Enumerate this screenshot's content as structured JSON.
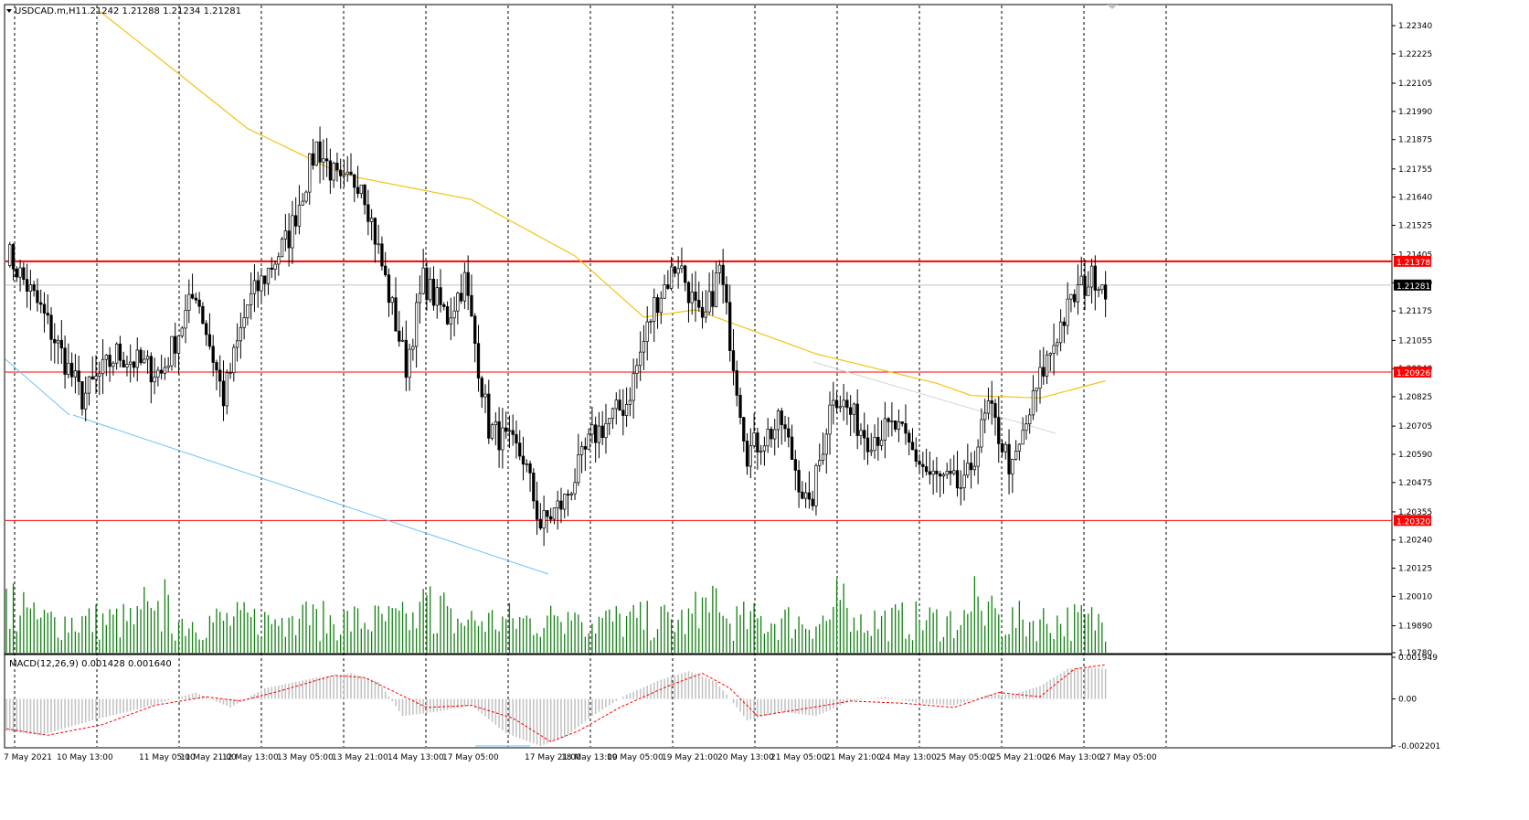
{
  "header": {
    "dropdown_icon": "triangle-down-icon",
    "symbol": "USDCAD.m,H1",
    "ohlc": "1.21242 1.21288 1.21234 1.21281"
  },
  "macd_label": "MACD(12,26,9) 0.001428 0.001640",
  "price_axis": {
    "ticks": [
      "1.22340",
      "1.22225",
      "1.22105",
      "1.21990",
      "1.21875",
      "1.21755",
      "1.21640",
      "1.21525",
      "1.21405",
      "1.21290",
      "1.21175",
      "1.21055",
      "1.20940",
      "1.20825",
      "1.20705",
      "1.20590",
      "1.20475",
      "1.20355",
      "1.20240",
      "1.20125",
      "1.20010",
      "1.19890",
      "1.19780"
    ],
    "min": 1.1978,
    "max": 1.224
  },
  "macd_axis": {
    "ticks": [
      "0.001949",
      "0.00",
      "-0.002201"
    ],
    "min": -0.002201,
    "max": 0.001949
  },
  "levels": [
    {
      "label": "1.21378",
      "value": 1.21378,
      "color": "#ff0000",
      "width": 2
    },
    {
      "label": "1.21281",
      "value": 1.21281,
      "color": "#c0c0c0",
      "current": true
    },
    {
      "label": "1.20926",
      "value": 1.20926,
      "color": "#ff0000",
      "width": 1
    },
    {
      "label": "1.20320",
      "value": 1.2032,
      "color": "#ff0000",
      "width": 1
    }
  ],
  "time_axis": [
    "7 May 2021",
    "10 May 13:00",
    "11 May 05:00",
    "11 May 21:00",
    "12 May 13:00",
    "13 May 05:00",
    "13 May 21:00",
    "14 May 13:00",
    "17 May 05:00",
    "17 May 21:00",
    "18 May 13:00",
    "19 May 05:00",
    "19 May 21:00",
    "20 May 13:00",
    "21 May 05:00",
    "21 May 21:00",
    "24 May 13:00",
    "25 May 05:00",
    "25 May 21:00",
    "26 May 13:00",
    "27 May 05:00"
  ],
  "colors": {
    "ma": "#f2c318",
    "volume": "#118011",
    "level": "#ff0000",
    "trend_blue": "#6ec3ee",
    "trend_gray": "#d3d3d3",
    "macd_hist": "#c0c0c0",
    "macd_signal": "#ff0000",
    "candle": "#000000"
  },
  "chart_data": [
    {
      "type": "line",
      "series_kind": "candlestick",
      "symbol": "USDCAD.m",
      "timeframe": "H1",
      "anchors": [
        {
          "bar": 0,
          "price": 1.2142
        },
        {
          "bar": 10,
          "price": 1.2118
        },
        {
          "bar": 22,
          "price": 1.2082
        },
        {
          "bar": 32,
          "price": 1.21
        },
        {
          "bar": 45,
          "price": 1.2092
        },
        {
          "bar": 55,
          "price": 1.2126
        },
        {
          "bar": 63,
          "price": 1.2082
        },
        {
          "bar": 70,
          "price": 1.212
        },
        {
          "bar": 82,
          "price": 1.2148
        },
        {
          "bar": 90,
          "price": 1.2185
        },
        {
          "bar": 97,
          "price": 1.2168
        },
        {
          "bar": 103,
          "price": 1.2172
        },
        {
          "bar": 110,
          "price": 1.213
        },
        {
          "bar": 116,
          "price": 1.2095
        },
        {
          "bar": 121,
          "price": 1.213
        },
        {
          "bar": 128,
          "price": 1.2115
        },
        {
          "bar": 133,
          "price": 1.213
        },
        {
          "bar": 140,
          "price": 1.207
        },
        {
          "bar": 150,
          "price": 1.2058
        },
        {
          "bar": 155,
          "price": 1.203
        },
        {
          "bar": 162,
          "price": 1.204
        },
        {
          "bar": 170,
          "price": 1.2066
        },
        {
          "bar": 180,
          "price": 1.208
        },
        {
          "bar": 188,
          "price": 1.212
        },
        {
          "bar": 195,
          "price": 1.2138
        },
        {
          "bar": 202,
          "price": 1.211
        },
        {
          "bar": 207,
          "price": 1.2135
        },
        {
          "bar": 215,
          "price": 1.206
        },
        {
          "bar": 225,
          "price": 1.2072
        },
        {
          "bar": 233,
          "price": 1.2035
        },
        {
          "bar": 240,
          "price": 1.2085
        },
        {
          "bar": 250,
          "price": 1.2066
        },
        {
          "bar": 258,
          "price": 1.207
        },
        {
          "bar": 268,
          "price": 1.205
        },
        {
          "bar": 278,
          "price": 1.2045
        },
        {
          "bar": 285,
          "price": 1.2078
        },
        {
          "bar": 292,
          "price": 1.2052
        },
        {
          "bar": 300,
          "price": 1.209
        },
        {
          "bar": 306,
          "price": 1.2112
        },
        {
          "bar": 311,
          "price": 1.2126
        },
        {
          "bar": 316,
          "price": 1.2132
        },
        {
          "bar": 319,
          "price": 1.21281
        }
      ]
    },
    {
      "type": "line",
      "name": "MA",
      "anchors": [
        {
          "bar": 27,
          "price": 1.224
        },
        {
          "bar": 45,
          "price": 1.222
        },
        {
          "bar": 70,
          "price": 1.2192
        },
        {
          "bar": 95,
          "price": 1.2175
        },
        {
          "bar": 102,
          "price": 1.2172
        },
        {
          "bar": 135,
          "price": 1.2163
        },
        {
          "bar": 165,
          "price": 1.214
        },
        {
          "bar": 185,
          "price": 1.2115
        },
        {
          "bar": 200,
          "price": 1.2118
        },
        {
          "bar": 235,
          "price": 1.21
        },
        {
          "bar": 270,
          "price": 1.2088
        },
        {
          "bar": 280,
          "price": 1.2083
        },
        {
          "bar": 300,
          "price": 1.2082
        },
        {
          "bar": 319,
          "price": 1.2089
        }
      ]
    },
    {
      "type": "bar",
      "name": "MACD",
      "anchors": [
        {
          "bar": 0,
          "value": -0.0015
        },
        {
          "bar": 10,
          "value": -0.0017
        },
        {
          "bar": 25,
          "value": -0.001
        },
        {
          "bar": 40,
          "value": -0.0004
        },
        {
          "bar": 55,
          "value": 0.0003
        },
        {
          "bar": 65,
          "value": -0.0004
        },
        {
          "bar": 75,
          "value": 0.0005
        },
        {
          "bar": 90,
          "value": 0.001
        },
        {
          "bar": 100,
          "value": 0.0012
        },
        {
          "bar": 108,
          "value": 0.0008
        },
        {
          "bar": 115,
          "value": -0.0008
        },
        {
          "bar": 125,
          "value": -0.0006
        },
        {
          "bar": 135,
          "value": -0.0003
        },
        {
          "bar": 145,
          "value": -0.0016
        },
        {
          "bar": 155,
          "value": -0.0022
        },
        {
          "bar": 162,
          "value": -0.0018
        },
        {
          "bar": 170,
          "value": -0.0008
        },
        {
          "bar": 180,
          "value": 0.0002
        },
        {
          "bar": 190,
          "value": 0.0009
        },
        {
          "bar": 198,
          "value": 0.0013
        },
        {
          "bar": 206,
          "value": 0.0008
        },
        {
          "bar": 215,
          "value": -0.001
        },
        {
          "bar": 225,
          "value": -0.0006
        },
        {
          "bar": 235,
          "value": -0.0008
        },
        {
          "bar": 245,
          "value": -0.0001
        },
        {
          "bar": 255,
          "value": 0.0001
        },
        {
          "bar": 265,
          "value": -0.0002
        },
        {
          "bar": 275,
          "value": -0.0003
        },
        {
          "bar": 285,
          "value": 0.0002
        },
        {
          "bar": 292,
          "value": 0.0002
        },
        {
          "bar": 300,
          "value": 0.0006
        },
        {
          "bar": 308,
          "value": 0.0014
        },
        {
          "bar": 313,
          "value": 0.0015
        },
        {
          "bar": 319,
          "value": 0.0014
        }
      ],
      "signal_anchors": [
        {
          "bar": 0,
          "value": -0.0014
        },
        {
          "bar": 12,
          "value": -0.0017
        },
        {
          "bar": 28,
          "value": -0.0012
        },
        {
          "bar": 43,
          "value": -0.0003
        },
        {
          "bar": 58,
          "value": 0.0001
        },
        {
          "bar": 68,
          "value": -0.0001
        },
        {
          "bar": 80,
          "value": 0.0004
        },
        {
          "bar": 95,
          "value": 0.0011
        },
        {
          "bar": 104,
          "value": 0.001
        },
        {
          "bar": 113,
          "value": 0.0003
        },
        {
          "bar": 122,
          "value": -0.0004
        },
        {
          "bar": 135,
          "value": -0.0003
        },
        {
          "bar": 147,
          "value": -0.0009
        },
        {
          "bar": 158,
          "value": -0.002
        },
        {
          "bar": 166,
          "value": -0.0015
        },
        {
          "bar": 178,
          "value": -0.0004
        },
        {
          "bar": 192,
          "value": 0.0006
        },
        {
          "bar": 202,
          "value": 0.0012
        },
        {
          "bar": 210,
          "value": 0.0005
        },
        {
          "bar": 218,
          "value": -0.0008
        },
        {
          "bar": 230,
          "value": -0.0005
        },
        {
          "bar": 245,
          "value": -0.0001
        },
        {
          "bar": 260,
          "value": -0.0002
        },
        {
          "bar": 275,
          "value": -0.0004
        },
        {
          "bar": 288,
          "value": 0.0003
        },
        {
          "bar": 300,
          "value": 0.0001
        },
        {
          "bar": 310,
          "value": 0.0014
        },
        {
          "bar": 319,
          "value": 0.0016
        }
      ]
    }
  ]
}
